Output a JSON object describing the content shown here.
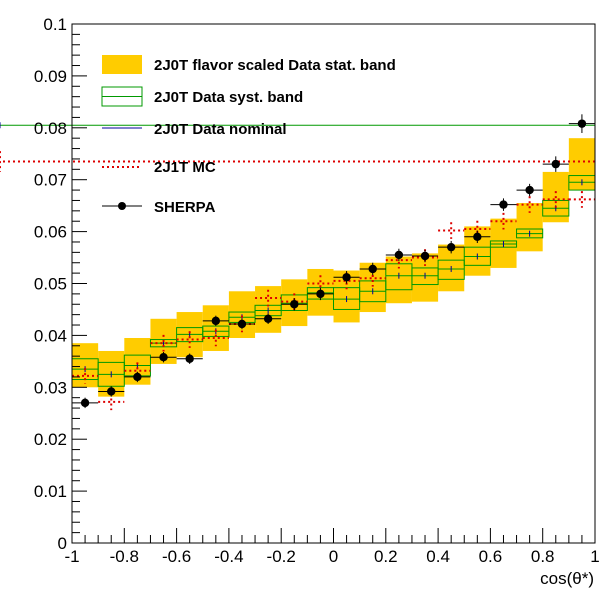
{
  "chart_data": {
    "type": "scatter",
    "title": "",
    "xlabel": "cos(θ*)",
    "ylabel": "",
    "xlim": [
      -1,
      1
    ],
    "ylim": [
      0,
      0.1
    ],
    "grid": false,
    "legend_position": "top-left",
    "bins": [
      -1.0,
      -0.9,
      -0.8,
      -0.7,
      -0.6,
      -0.5,
      -0.4,
      -0.3,
      -0.2,
      -0.1,
      0.0,
      0.1,
      0.2,
      0.3,
      0.4,
      0.5,
      0.6,
      0.7,
      0.8,
      0.9,
      1.0
    ],
    "x_ticks": [
      {
        "value": -1,
        "label": "-1"
      },
      {
        "value": -0.8,
        "label": "-0.8"
      },
      {
        "value": -0.6,
        "label": "-0.6"
      },
      {
        "value": -0.4,
        "label": "-0.4"
      },
      {
        "value": -0.2,
        "label": "-0.2"
      },
      {
        "value": 0,
        "label": "0"
      },
      {
        "value": 0.2,
        "label": "0.2"
      },
      {
        "value": 0.4,
        "label": "0.4"
      },
      {
        "value": 0.6,
        "label": "0.6"
      },
      {
        "value": 0.8,
        "label": "0.8"
      },
      {
        "value": 1,
        "label": "1"
      }
    ],
    "y_ticks": [
      {
        "value": 0,
        "label": "0"
      },
      {
        "value": 0.01,
        "label": "0.01"
      },
      {
        "value": 0.02,
        "label": "0.02"
      },
      {
        "value": 0.03,
        "label": "0.03"
      },
      {
        "value": 0.04,
        "label": "0.04"
      },
      {
        "value": 0.05,
        "label": "0.05"
      },
      {
        "value": 0.06,
        "label": "0.06"
      },
      {
        "value": 0.07,
        "label": "0.07"
      },
      {
        "value": 0.08,
        "label": "0.08"
      },
      {
        "value": 0.09,
        "label": "0.09"
      },
      {
        "value": 0.1,
        "label": "0.1"
      }
    ],
    "series": [
      {
        "name": "2J0T flavor scaled Data stat. band",
        "style": "band",
        "color": "#ffcc00",
        "values": [
          [
            0.03,
            0.0385
          ],
          [
            0.0282,
            0.037
          ],
          [
            0.0305,
            0.0395
          ],
          [
            0.0345,
            0.0432
          ],
          [
            0.0358,
            0.0445
          ],
          [
            0.037,
            0.0458
          ],
          [
            0.0395,
            0.0485
          ],
          [
            0.0405,
            0.0495
          ],
          [
            0.0418,
            0.0508
          ],
          [
            0.0438,
            0.0528
          ],
          [
            0.0425,
            0.0525
          ],
          [
            0.0445,
            0.054
          ],
          [
            0.0462,
            0.0552
          ],
          [
            0.0465,
            0.0558
          ],
          [
            0.0485,
            0.0575
          ],
          [
            0.0515,
            0.061
          ],
          [
            0.053,
            0.0625
          ],
          [
            0.0562,
            0.0655
          ],
          [
            0.0618,
            0.0715
          ],
          [
            0.068,
            0.078
          ],
          [
            0.074,
            0.0895
          ]
        ]
      },
      {
        "name": "2J0T Data syst. band",
        "style": "box",
        "color": "#009900",
        "values": [
          [
            0.0315,
            0.0355
          ],
          [
            0.0302,
            0.0348
          ],
          [
            0.0322,
            0.0362
          ],
          [
            0.0378,
            0.0392
          ],
          [
            0.0388,
            0.0415
          ],
          [
            0.0398,
            0.0418
          ],
          [
            0.0425,
            0.0445
          ],
          [
            0.0438,
            0.0458
          ],
          [
            0.0448,
            0.0478
          ],
          [
            0.047,
            0.0492
          ],
          [
            0.045,
            0.0492
          ],
          [
            0.0465,
            0.0505
          ],
          [
            0.0488,
            0.0538
          ],
          [
            0.0498,
            0.053
          ],
          [
            0.0508,
            0.0545
          ],
          [
            0.0535,
            0.057
          ],
          [
            0.057,
            0.0582
          ],
          [
            0.0588,
            0.0605
          ],
          [
            0.063,
            0.066
          ],
          [
            0.068,
            0.0708
          ],
          [
            0.0765,
            0.0842
          ]
        ]
      },
      {
        "name": "2J0T Data nominal",
        "style": "step",
        "color": "#000099",
        "values": [
          0.0335,
          0.0325,
          0.0342,
          0.0385,
          0.0402,
          0.0408,
          0.0435,
          0.0448,
          0.0462,
          0.0482,
          0.047,
          0.0485,
          0.0515,
          0.0515,
          0.0528,
          0.0552,
          0.0576,
          0.0596,
          0.0645,
          0.0695,
          0.0805
        ]
      },
      {
        "name": "2J1T MC",
        "style": "dotted-errorbar",
        "color": "#dd0000",
        "values": [
          0.0322,
          0.0272,
          0.0332,
          0.0385,
          0.0392,
          0.0395,
          0.0422,
          0.0472,
          0.0465,
          0.05,
          0.0505,
          0.051,
          0.0545,
          0.055,
          0.0602,
          0.0605,
          0.062,
          0.0652,
          0.0662,
          0.0662,
          0.0735
        ],
        "errors": [
          0.0015,
          0.0016,
          0.0016,
          0.0016,
          0.0016,
          0.0016,
          0.0016,
          0.0016,
          0.0016,
          0.0016,
          0.0016,
          0.0016,
          0.0016,
          0.0016,
          0.0016,
          0.0016,
          0.0016,
          0.0016,
          0.0016,
          0.0016,
          0.002
        ]
      },
      {
        "name": "SHERPA",
        "style": "marker-errorbar",
        "color": "#000000",
        "values": [
          0.027,
          0.0292,
          0.032,
          0.0358,
          0.0355,
          0.0428,
          0.0422,
          0.0432,
          0.046,
          0.048,
          0.0512,
          0.0528,
          0.0555,
          0.0553,
          0.057,
          0.059,
          0.0652,
          0.068,
          0.073,
          0.0808
        ],
        "bin_index": [
          0,
          1,
          2,
          3,
          4,
          5,
          6,
          7,
          8,
          9,
          10,
          11,
          12,
          13,
          14,
          15,
          16,
          17,
          18,
          19
        ],
        "errors": [
          0.001,
          0.001,
          0.001,
          0.001,
          0.001,
          0.001,
          0.001,
          0.001,
          0.0012,
          0.0012,
          0.0012,
          0.0012,
          0.0012,
          0.0012,
          0.0012,
          0.0012,
          0.0012,
          0.0012,
          0.0015,
          0.0018
        ]
      }
    ]
  }
}
